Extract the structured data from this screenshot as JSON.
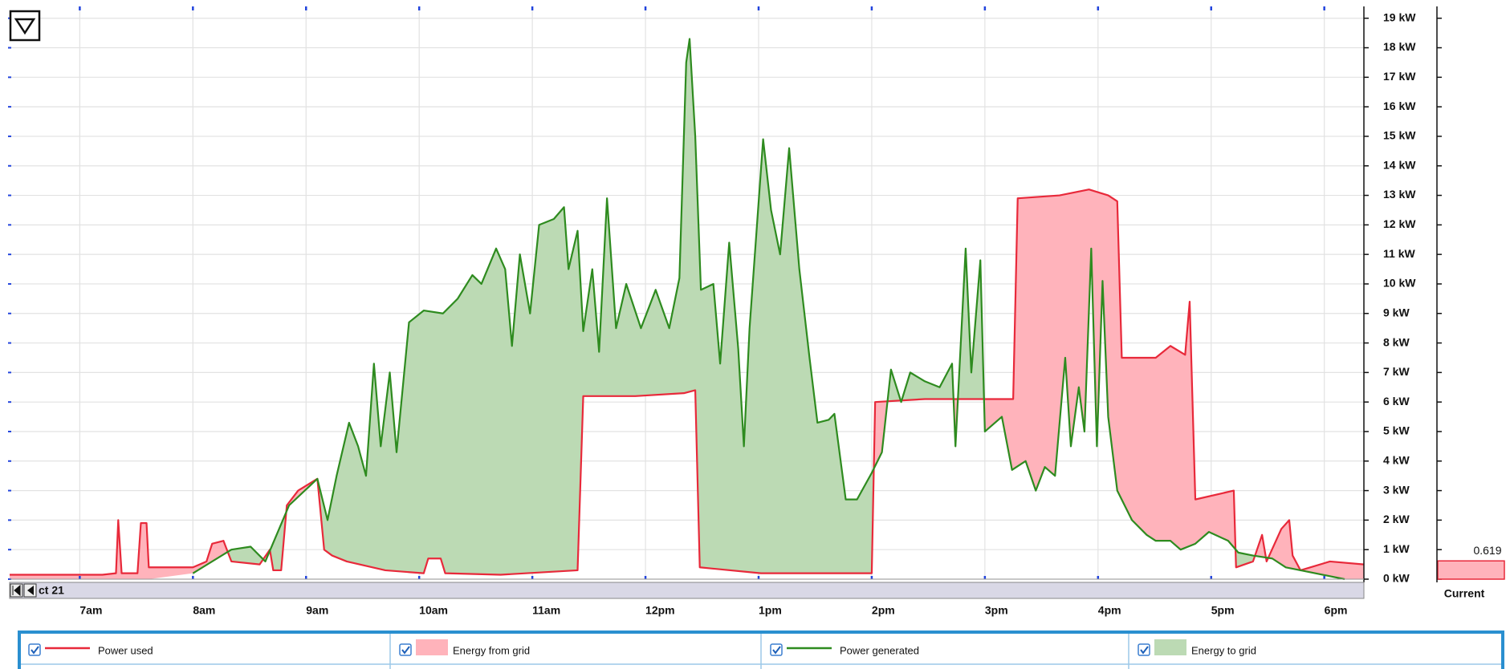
{
  "chart_data": {
    "type": "line",
    "series": [
      {
        "name": "Power used",
        "color": "#e8293a",
        "x": [
          6.38,
          7.2,
          7.32,
          7.34,
          7.37,
          7.51,
          7.54,
          7.59,
          7.61,
          8.0,
          8.12,
          8.17,
          8.27,
          8.34,
          8.59,
          8.68,
          8.71,
          8.78,
          8.83,
          8.93,
          9.1,
          9.16,
          9.23,
          9.36,
          9.7,
          10.04,
          10.08,
          10.19,
          10.23,
          10.72,
          11.4,
          11.45,
          11.91,
          12.34,
          12.44,
          12.48,
          13.02,
          14.0,
          14.03,
          14.47,
          14.98,
          15.25,
          15.29,
          15.66,
          15.92,
          16.09,
          16.17,
          16.21,
          16.51,
          16.64,
          16.77,
          16.81,
          16.86,
          17.2,
          17.22,
          17.37,
          17.45,
          17.49,
          17.62,
          17.69,
          17.72,
          17.79,
          18.05,
          18.35
        ],
        "values": [
          0.15,
          0.15,
          0.2,
          2.0,
          0.2,
          0.2,
          1.9,
          1.9,
          0.4,
          0.4,
          0.6,
          1.2,
          1.3,
          0.6,
          0.5,
          1.0,
          0.3,
          0.3,
          2.5,
          3.0,
          3.4,
          1.0,
          0.8,
          0.6,
          0.3,
          0.2,
          0.7,
          0.7,
          0.2,
          0.15,
          0.3,
          6.2,
          6.2,
          6.3,
          6.4,
          0.4,
          0.2,
          0.2,
          6.0,
          6.1,
          6.1,
          6.1,
          12.9,
          13.0,
          13.2,
          13.0,
          12.8,
          7.5,
          7.5,
          7.9,
          7.6,
          9.4,
          2.7,
          3.0,
          0.4,
          0.6,
          1.5,
          0.6,
          1.7,
          2.0,
          0.8,
          0.3,
          0.6,
          0.5
        ]
      },
      {
        "name": "Power generated",
        "color": "#2e8b1f",
        "x": [
          8.0,
          8.34,
          8.51,
          8.64,
          8.85,
          9.1,
          9.19,
          9.27,
          9.38,
          9.46,
          9.53,
          9.6,
          9.66,
          9.74,
          9.8,
          9.91,
          10.04,
          10.21,
          10.34,
          10.47,
          10.55,
          10.68,
          10.76,
          10.82,
          10.89,
          10.98,
          11.06,
          11.19,
          11.28,
          11.32,
          11.4,
          11.45,
          11.53,
          11.59,
          11.66,
          11.74,
          11.83,
          11.96,
          12.09,
          12.21,
          12.3,
          12.36,
          12.39,
          12.44,
          12.49,
          12.6,
          12.66,
          12.74,
          12.82,
          12.87,
          12.92,
          13.04,
          13.11,
          13.19,
          13.27,
          13.36,
          13.45,
          13.52,
          13.62,
          13.67,
          13.77,
          13.87,
          14.0,
          14.09,
          14.17,
          14.26,
          14.34,
          14.47,
          14.6,
          14.71,
          14.74,
          14.83,
          14.88,
          14.96,
          15.0,
          15.15,
          15.24,
          15.36,
          15.45,
          15.53,
          15.62,
          15.71,
          15.76,
          15.83,
          15.88,
          15.94,
          15.99,
          16.04,
          16.09,
          16.17,
          16.3,
          16.43,
          16.51,
          16.64,
          16.73,
          16.86,
          16.98,
          17.15,
          17.24,
          17.37,
          17.54,
          17.66,
          17.79,
          18.05,
          18.18
        ],
        "values": [
          0.2,
          1.0,
          1.1,
          0.6,
          2.5,
          3.4,
          2.0,
          3.5,
          5.3,
          4.5,
          3.5,
          7.3,
          4.5,
          7.0,
          4.3,
          8.7,
          9.1,
          9.0,
          9.5,
          10.3,
          10.0,
          11.2,
          10.5,
          7.9,
          11.0,
          9.0,
          12.0,
          12.2,
          12.6,
          10.5,
          11.8,
          8.4,
          10.5,
          7.7,
          12.9,
          8.5,
          10.0,
          8.5,
          9.8,
          8.5,
          10.2,
          17.5,
          18.3,
          15.0,
          9.8,
          10.0,
          7.3,
          11.4,
          7.8,
          4.5,
          8.5,
          14.9,
          12.5,
          11.0,
          14.6,
          10.5,
          7.5,
          5.3,
          5.4,
          5.6,
          2.7,
          2.7,
          3.6,
          4.3,
          7.1,
          6.0,
          7.0,
          6.7,
          6.5,
          7.3,
          4.5,
          11.2,
          7.0,
          10.8,
          5.0,
          5.5,
          3.7,
          4.0,
          3.0,
          3.8,
          3.5,
          7.5,
          4.5,
          6.5,
          5.0,
          11.2,
          4.5,
          10.1,
          5.5,
          3.0,
          2.0,
          1.5,
          1.3,
          1.3,
          1.0,
          1.2,
          1.6,
          1.3,
          0.9,
          0.8,
          0.7,
          0.4,
          0.3,
          0.1,
          0
        ]
      }
    ],
    "fills": [
      {
        "name": "Energy from grid",
        "color": "#ffb3bb"
      },
      {
        "name": "Energy to grid",
        "color": "#bcdab4"
      }
    ],
    "xlim": [
      6.38,
      18.35
    ],
    "xticks": [
      {
        "value": 7,
        "label": "7am"
      },
      {
        "value": 8,
        "label": "8am"
      },
      {
        "value": 9,
        "label": "9am"
      },
      {
        "value": 10,
        "label": "10am"
      },
      {
        "value": 11,
        "label": "11am"
      },
      {
        "value": 12,
        "label": "12pm"
      },
      {
        "value": 13,
        "label": "1pm"
      },
      {
        "value": 14,
        "label": "2pm"
      },
      {
        "value": 15,
        "label": "3pm"
      },
      {
        "value": 16,
        "label": "4pm"
      },
      {
        "value": 17,
        "label": "5pm"
      },
      {
        "value": 18,
        "label": "6pm"
      }
    ],
    "ylim": [
      0,
      19.4
    ],
    "yticks": [
      {
        "value": 0,
        "label": "0 kW"
      },
      {
        "value": 1,
        "label": "1 kW"
      },
      {
        "value": 2,
        "label": "2 kW"
      },
      {
        "value": 3,
        "label": "3 kW"
      },
      {
        "value": 4,
        "label": "4 kW"
      },
      {
        "value": 5,
        "label": "5 kW"
      },
      {
        "value": 6,
        "label": "6 kW"
      },
      {
        "value": 7,
        "label": "7 kW"
      },
      {
        "value": 8,
        "label": "8 kW"
      },
      {
        "value": 9,
        "label": "9 kW"
      },
      {
        "value": 10,
        "label": "10 kW"
      },
      {
        "value": 11,
        "label": "11 kW"
      },
      {
        "value": 12,
        "label": "12 kW"
      },
      {
        "value": 13,
        "label": "13 kW"
      },
      {
        "value": 14,
        "label": "14 kW"
      },
      {
        "value": 15,
        "label": "15 kW"
      },
      {
        "value": 16,
        "label": "16 kW"
      },
      {
        "value": 17,
        "label": "17 kW"
      },
      {
        "value": 18,
        "label": "18 kW"
      },
      {
        "value": 19,
        "label": "19 kW"
      }
    ],
    "grid": true,
    "date_label": "ct 21",
    "current": {
      "label": "Current",
      "value": 0.619,
      "color": "#e8293a"
    }
  }
}
